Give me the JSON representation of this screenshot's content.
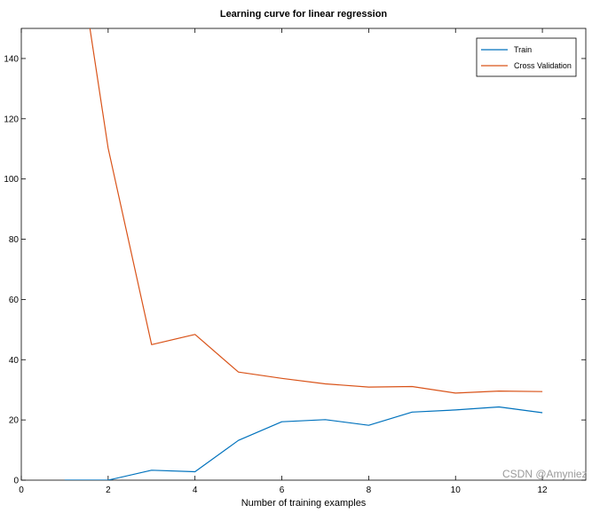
{
  "chart_data": {
    "type": "line",
    "title": "Learning curve for linear regression",
    "xlabel": "Number of training examples",
    "ylabel": "",
    "xlim": [
      0,
      13
    ],
    "ylim": [
      0,
      150
    ],
    "xticks": [
      0,
      2,
      4,
      6,
      8,
      10,
      12
    ],
    "yticks": [
      0,
      20,
      40,
      60,
      80,
      100,
      120,
      140
    ],
    "grid": false,
    "legend_position": "top-right",
    "series": [
      {
        "name": "Train",
        "color": "#0072bd",
        "x": [
          1,
          2,
          3,
          4,
          5,
          6,
          7,
          8,
          9,
          10,
          11,
          12
        ],
        "y": [
          0.0,
          0.0,
          3.3,
          2.8,
          13.2,
          19.4,
          20.1,
          18.2,
          22.6,
          23.3,
          24.3,
          22.4
        ]
      },
      {
        "name": "Cross Validation",
        "color": "#d95319",
        "x": [
          1,
          2,
          3,
          4,
          5,
          6,
          7,
          8,
          9,
          10,
          11,
          12
        ],
        "y": [
          205.1,
          110.3,
          45.0,
          48.4,
          35.9,
          33.8,
          31.97,
          30.9,
          31.1,
          28.9,
          29.6,
          29.4
        ]
      }
    ]
  },
  "watermark": "CSDN @Amyniez"
}
